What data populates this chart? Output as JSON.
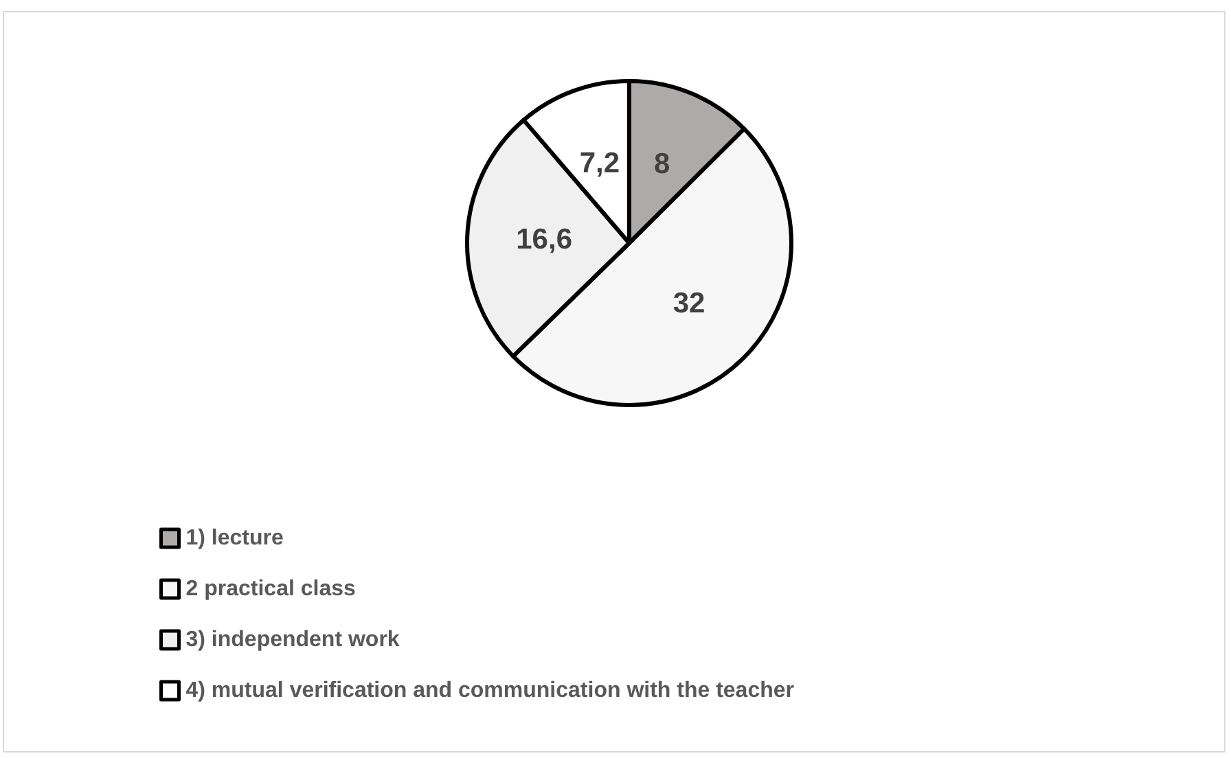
{
  "chart_data": {
    "type": "pie",
    "categories": [
      "1) lecture",
      "2 practical class",
      "3) independent work",
      "4) mutual verification and communication with the teacher"
    ],
    "values": [
      8,
      32,
      16.6,
      7.2
    ],
    "value_labels": [
      "8",
      "32",
      "16,6",
      "7,2"
    ],
    "colors": [
      "#aeaaaa",
      "#f7f7f7",
      "#f0f0f0",
      "#ffffff"
    ],
    "legend": "bottom left"
  }
}
